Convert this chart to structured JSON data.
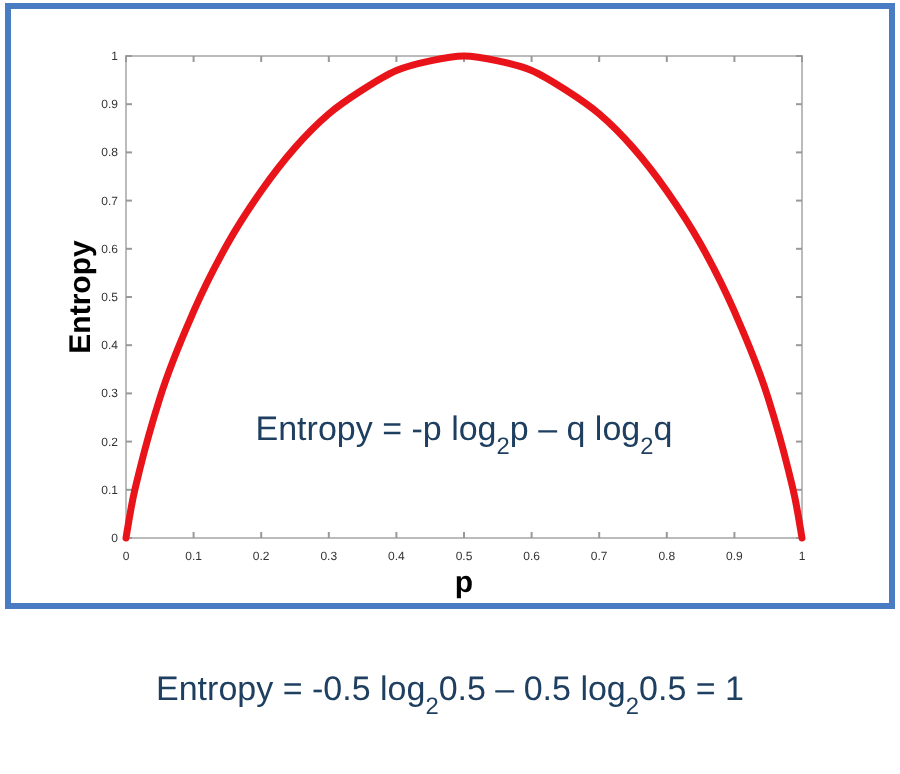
{
  "chart_data": {
    "type": "line",
    "xlabel": "p",
    "ylabel": "Entropy",
    "x": [
      0,
      0.01,
      0.02,
      0.05,
      0.1,
      0.15,
      0.2,
      0.25,
      0.3,
      0.35,
      0.4,
      0.45,
      0.5,
      0.55,
      0.6,
      0.65,
      0.7,
      0.75,
      0.8,
      0.85,
      0.9,
      0.95,
      0.98,
      0.99,
      1
    ],
    "series": [
      {
        "color": "#e8141a",
        "values": [
          0,
          0.08,
          0.14,
          0.29,
          0.47,
          0.61,
          0.72,
          0.81,
          0.88,
          0.93,
          0.97,
          0.99,
          1,
          0.99,
          0.97,
          0.93,
          0.88,
          0.81,
          0.72,
          0.61,
          0.47,
          0.29,
          0.14,
          0.08,
          0
        ]
      }
    ],
    "xlim": [
      0,
      1
    ],
    "ylim": [
      0,
      1
    ],
    "xticks": [
      0,
      0.1,
      0.2,
      0.3,
      0.4,
      0.5,
      0.6,
      0.7,
      0.8,
      0.9,
      1
    ],
    "yticks": [
      0,
      0.1,
      0.2,
      0.3,
      0.4,
      0.5,
      0.6,
      0.7,
      0.8,
      0.9,
      1
    ],
    "annotations": [
      "Entropy  = -p log$_{2}$p – q log$_{2}$q",
      "Entropy = -0.5 log$_{2}$0.5 – 0.5 log$_{2}$0.5 = 1"
    ]
  }
}
